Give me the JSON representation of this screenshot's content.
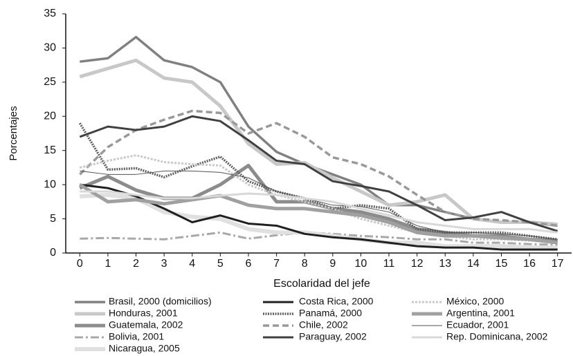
{
  "chart_data": {
    "type": "line",
    "x_label": "Escolaridad del jefe",
    "y_label": "Porcentajes",
    "x": [
      0,
      1,
      2,
      3,
      4,
      5,
      6,
      7,
      8,
      9,
      10,
      11,
      12,
      13,
      14,
      15,
      16,
      17
    ],
    "xlim": [
      -0.5,
      17.5
    ],
    "xticks": [
      0,
      1,
      2,
      3,
      4,
      5,
      6,
      7,
      8,
      9,
      10,
      11,
      12,
      13,
      14,
      15,
      16,
      17
    ],
    "ylim": [
      0,
      35
    ],
    "yticks": [
      0,
      5,
      10,
      15,
      20,
      25,
      30,
      35
    ],
    "series": [
      {
        "name": "Brasil, 2000 (domicilios)",
        "color": "#808080",
        "width": 3.5,
        "dash": "none",
        "values": [
          28,
          28.5,
          31.6,
          28.2,
          27.2,
          25,
          18.5,
          14.8,
          13,
          11.5,
          10,
          7,
          7,
          6,
          5,
          4.5,
          4.5,
          4
        ]
      },
      {
        "name": "Honduras, 2001",
        "color": "#c8c8c8",
        "width": 5,
        "dash": "none",
        "values": [
          25.8,
          27,
          28.2,
          25.6,
          25,
          21.5,
          16,
          13,
          13.2,
          11,
          9,
          7,
          7.5,
          8.5,
          5,
          4.5,
          4.5,
          4.2
        ]
      },
      {
        "name": "Guatemala, 2002",
        "color": "#8c8c8c",
        "width": 5,
        "dash": "none",
        "values": [
          9.5,
          11.2,
          9.2,
          8,
          8,
          10,
          12.8,
          7.5,
          7.5,
          6.5,
          6,
          5,
          3.5,
          3,
          2.5,
          2.5,
          2,
          1.8
        ]
      },
      {
        "name": "Bolivia, 2001",
        "color": "#a8a8a8",
        "width": 3,
        "dash": "12 4 3 4",
        "values": [
          2.1,
          2.2,
          2.1,
          2,
          2.5,
          3,
          2.1,
          2.6,
          3,
          2.8,
          2.5,
          2.3,
          2,
          2,
          1.5,
          1.5,
          1.3,
          1.2
        ]
      },
      {
        "name": "Nicaragua, 2005",
        "color": "#e0e0e0",
        "width": 6,
        "dash": "none",
        "values": [
          8.3,
          8.5,
          8,
          6,
          5.3,
          5,
          3.5,
          3,
          3,
          2.5,
          2,
          1.5,
          1.5,
          1,
          1,
          1,
          0.8,
          0.8
        ]
      },
      {
        "name": "Costa Rica, 2000",
        "color": "#202020",
        "width": 3,
        "dash": "none",
        "values": [
          10,
          9.5,
          8.3,
          6.5,
          4.5,
          5.5,
          4.3,
          4,
          2.8,
          2.3,
          2,
          1.5,
          1,
          0.8,
          0.8,
          0.5,
          0.5,
          0.5
        ]
      },
      {
        "name": "Panamá, 2000",
        "color": "#606060",
        "width": 3.5,
        "dash": "2 1.5",
        "values": [
          19,
          12.2,
          12.4,
          11.1,
          12.7,
          14.1,
          10.5,
          9,
          8,
          6.5,
          7,
          6.5,
          3.5,
          3,
          3,
          3,
          2.5,
          2
        ]
      },
      {
        "name": "Chile, 2002",
        "color": "#999999",
        "width": 3.5,
        "dash": "9 5",
        "values": [
          11.5,
          15.5,
          18,
          19.5,
          20.8,
          20.5,
          17.5,
          19,
          17,
          14,
          13,
          11.2,
          8.5,
          6,
          5,
          4.8,
          4.5,
          4
        ]
      },
      {
        "name": "Paraguay, 2002",
        "color": "#404040",
        "width": 3,
        "dash": "none",
        "values": [
          17,
          18.5,
          18,
          18.5,
          20,
          19.3,
          16.5,
          13.5,
          13,
          10.5,
          9.8,
          9,
          7,
          4.8,
          5.2,
          6,
          4.5,
          3.2
        ]
      },
      {
        "name": "México, 2000",
        "color": "#c8c8c8",
        "width": 3,
        "dash": "3 2",
        "values": [
          12.5,
          13.5,
          14.3,
          13.3,
          13,
          12.8,
          10,
          8.5,
          7.5,
          6.5,
          5,
          4,
          3,
          2.5,
          2,
          2,
          1.8,
          1.5
        ]
      },
      {
        "name": "Argentina, 2001",
        "color": "#a0a0a0",
        "width": 5,
        "dash": "none",
        "values": [
          10,
          7.5,
          7.8,
          7.2,
          7.8,
          8.4,
          7,
          6.5,
          6.5,
          6,
          5.5,
          4.5,
          3,
          2.5,
          2.5,
          2.2,
          2,
          1.5
        ]
      },
      {
        "name": "Ecuador, 2001",
        "color": "#505050",
        "width": 1,
        "dash": "none",
        "values": [
          12,
          11.5,
          11.5,
          12,
          12,
          11.8,
          11,
          9,
          8,
          7,
          6.8,
          6,
          4,
          3,
          3,
          2.8,
          2.5,
          2
        ]
      },
      {
        "name": "Rep. Dominicana, 2002",
        "color": "#d8d8d8",
        "width": 3,
        "dash": "none",
        "values": [
          9,
          9,
          8.5,
          8,
          8,
          8.4,
          8.7,
          8.5,
          8,
          7.5,
          6.5,
          5.5,
          4.5,
          4,
          3.5,
          3.5,
          3.5,
          3
        ]
      }
    ]
  }
}
